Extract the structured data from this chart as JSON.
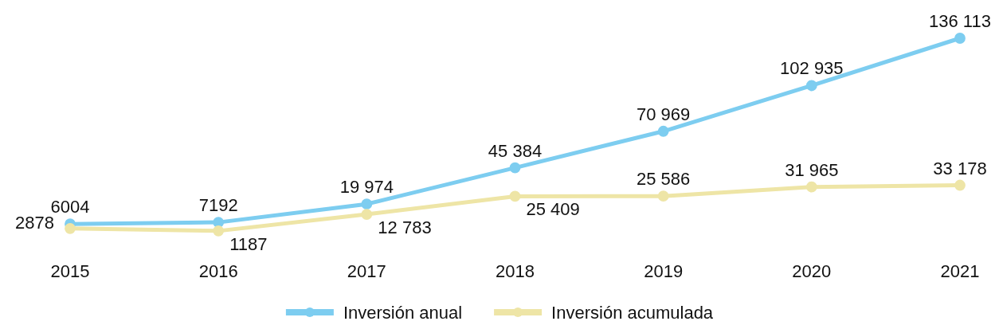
{
  "chart_data": {
    "type": "line",
    "categories": [
      "2015",
      "2016",
      "2017",
      "2018",
      "2019",
      "2020",
      "2021"
    ],
    "series": [
      {
        "name": "Inversión anual",
        "color": "#7dcdf0",
        "values": [
          6004,
          7192,
          19974,
          45384,
          70969,
          102935,
          136113
        ]
      },
      {
        "name": "Inversión acumulada",
        "color": "#eee5a6",
        "values": [
          2878,
          1187,
          12783,
          25409,
          25586,
          31965,
          33178
        ]
      }
    ],
    "data_labels": true,
    "value_labels": [
      [
        "6004",
        "7192",
        "19 974",
        "45 384",
        "70 969",
        "102 935",
        "136 113"
      ],
      [
        "2878",
        "1187",
        "12 783",
        "25 409",
        "25 586",
        "31 965",
        "33 178"
      ]
    ],
    "legend": "bottom",
    "marker": "circle",
    "line_style": "solid"
  }
}
